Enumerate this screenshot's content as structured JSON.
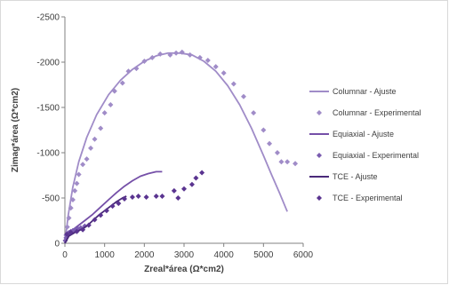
{
  "chart_data": {
    "type": "scatter",
    "xlabel": "Zreal*área (Ω*cm2)",
    "ylabel": "Zimag*área (Ω*cm2)",
    "xlim": [
      0,
      6000
    ],
    "ylim": [
      0,
      -2500
    ],
    "x_ticks": [
      "0",
      "1000",
      "2000",
      "3000",
      "4000",
      "5000",
      "6000"
    ],
    "y_ticks": [
      "0",
      "-500",
      "-1000",
      "-1500",
      "-2000",
      "-2500"
    ],
    "grid": false,
    "legend_position": "right",
    "series": [
      {
        "name": "Columnar - Ajuste",
        "style": "line",
        "color": "#a08cc8",
        "x": [
          0,
          80,
          200,
          350,
          550,
          800,
          1100,
          1400,
          1700,
          2000,
          2300,
          2600,
          2900,
          3200,
          3500,
          3800,
          4100,
          4400,
          4700,
          5000,
          5200,
          5400,
          5600
        ],
        "y": [
          0,
          -300,
          -620,
          -900,
          -1170,
          -1420,
          -1640,
          -1800,
          -1920,
          -2010,
          -2070,
          -2100,
          -2100,
          -2080,
          -2010,
          -1900,
          -1740,
          -1530,
          -1270,
          -970,
          -760,
          -560,
          -350
        ]
      },
      {
        "name": "Columnar - Experimental",
        "style": "markers",
        "color": "#a08cc8",
        "x": [
          30,
          60,
          100,
          150,
          200,
          250,
          300,
          350,
          450,
          550,
          650,
          750,
          900,
          1000,
          1150,
          1250,
          1450,
          1600,
          1800,
          2000,
          2200,
          2400,
          2650,
          2800,
          2950,
          3150,
          3400,
          3600,
          3800,
          4000,
          4250,
          4500,
          4750,
          5000,
          5150,
          5350,
          5450,
          5600,
          5800
        ],
        "y": [
          -90,
          -180,
          -280,
          -390,
          -480,
          -580,
          -660,
          -760,
          -870,
          -930,
          -1050,
          -1150,
          -1270,
          -1440,
          -1530,
          -1680,
          -1770,
          -1900,
          -1930,
          -2010,
          -2050,
          -2090,
          -2080,
          -2100,
          -2110,
          -2080,
          -2050,
          -2020,
          -1950,
          -1880,
          -1760,
          -1620,
          -1440,
          -1250,
          -1100,
          -1000,
          -900,
          -900,
          -880
        ]
      },
      {
        "name": "Equiaxial - Ajuste",
        "style": "line",
        "color": "#7550a8",
        "x": [
          0,
          100,
          200,
          350,
          500,
          700,
          900,
          1100,
          1300,
          1500,
          1700,
          1900,
          2100,
          2300,
          2450
        ],
        "y": [
          0,
          -90,
          -150,
          -200,
          -250,
          -320,
          -400,
          -480,
          -560,
          -630,
          -690,
          -740,
          -770,
          -790,
          -790
        ]
      },
      {
        "name": "Equiaxial - Experimental",
        "style": "markers",
        "color": "#7a5cb0",
        "x": [
          10,
          30,
          50,
          80,
          110,
          150,
          200,
          260,
          330,
          400,
          500
        ],
        "y": [
          -30,
          -60,
          -90,
          -110,
          -120,
          -130,
          -140,
          -150,
          -160,
          -170,
          -190
        ]
      },
      {
        "name": "TCE - Ajuste",
        "style": "line",
        "color": "#4a2a7a",
        "x": [
          0,
          100,
          250,
          400,
          550,
          700,
          850,
          1000,
          1150,
          1300,
          1450,
          1550
        ],
        "y": [
          0,
          -80,
          -120,
          -150,
          -190,
          -250,
          -310,
          -360,
          -410,
          -460,
          -500,
          -520
        ]
      },
      {
        "name": "TCE - Experimental",
        "style": "markers",
        "color": "#5a3490",
        "x": [
          50,
          150,
          300,
          450,
          600,
          750,
          900,
          1050,
          1200,
          1350,
          1500,
          1700,
          1850,
          2050,
          2300,
          2450,
          2750,
          2850,
          3000,
          3200,
          3300,
          3450
        ],
        "y": [
          -100,
          -120,
          -130,
          -150,
          -200,
          -260,
          -310,
          -360,
          -410,
          -440,
          -490,
          -510,
          -520,
          -510,
          -520,
          -520,
          -580,
          -500,
          -600,
          -650,
          -720,
          -780
        ]
      }
    ]
  }
}
